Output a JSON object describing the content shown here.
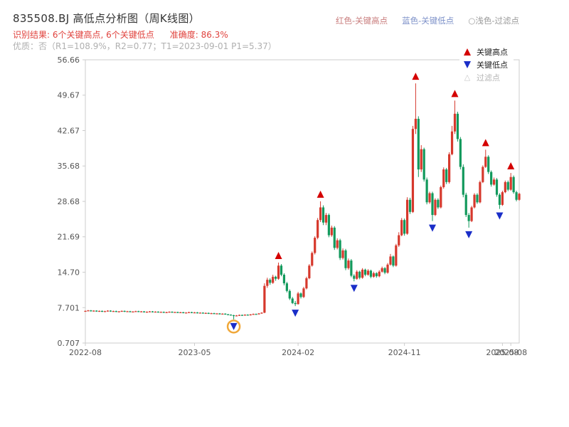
{
  "header": {
    "title": "835508.BJ 高低点分析图（周K线图）",
    "legend_top": [
      {
        "label": "红色-关键高点",
        "color": "#c87c7c"
      },
      {
        "label": "蓝色-关键低点",
        "color": "#7c90c8"
      },
      {
        "label": "○浅色-过滤点",
        "color": "#9a9a9a"
      }
    ],
    "result_line": "识别结果: 6个关键高点, 6个关键低点",
    "accuracy_line": "准确度: 86.3%",
    "result_color": "#e0433e",
    "quality_line": "优质：否（R1=108.9%，R2=0.77；T1=2023-09-01 P1=5.37）",
    "quality_color": "#b0b0b0"
  },
  "chart_data": {
    "type": "candlestick",
    "title": "835508.BJ 高低点分析图（周K线图）",
    "xlabel": "",
    "ylabel": "",
    "grid": false,
    "ylim": [
      0.707,
      56.66
    ],
    "y_ticks": [
      0.707,
      7.701,
      14.7,
      21.69,
      28.68,
      35.68,
      42.67,
      49.67,
      56.66
    ],
    "y_tick_labels": [
      "0.707",
      "7.701",
      "14.70",
      "21.69",
      "28.68",
      "35.68",
      "42.67",
      "49.67",
      "56.66"
    ],
    "x_ticks": [
      {
        "i": 0,
        "label": "2022-08"
      },
      {
        "i": 39,
        "label": "2023-05"
      },
      {
        "i": 76,
        "label": "2024-02"
      },
      {
        "i": 114,
        "label": "2024-11"
      },
      {
        "i": 149,
        "label": "2025-08"
      },
      {
        "i": 152,
        "label": "2025-08"
      }
    ],
    "colors": {
      "up": "#d6382c",
      "down": "#12995c",
      "key_high": "#d40000",
      "key_low": "#1a2ec8",
      "filtered_text": "#b5b5b5",
      "filtered_circle": "#f0a83a",
      "axis": "#cccccc",
      "tick_text": "#555555"
    },
    "plot_legend": [
      {
        "label": "关键高点",
        "marker": "up"
      },
      {
        "label": "关键低点",
        "marker": "down"
      },
      {
        "label": "过滤点",
        "marker": "outline"
      }
    ],
    "key_highs": [
      {
        "i": 69,
        "price": 16.6
      },
      {
        "i": 84,
        "price": 28.7
      },
      {
        "i": 118,
        "price": 52.0
      },
      {
        "i": 132,
        "price": 48.6
      },
      {
        "i": 143,
        "price": 38.9
      },
      {
        "i": 152,
        "price": 34.3
      }
    ],
    "key_lows": [
      {
        "i": 53,
        "price": 5.37,
        "circled": true
      },
      {
        "i": 75,
        "price": 8.0
      },
      {
        "i": 96,
        "price": 12.9
      },
      {
        "i": 124,
        "price": 24.8
      },
      {
        "i": 137,
        "price": 23.5
      },
      {
        "i": 148,
        "price": 27.2
      }
    ],
    "candles": [
      [
        7.0,
        7.13,
        6.92,
        7.05
      ],
      [
        7.05,
        7.23,
        6.97,
        7.15
      ],
      [
        7.15,
        7.23,
        6.92,
        7.0
      ],
      [
        7.0,
        7.18,
        6.92,
        7.1
      ],
      [
        7.1,
        7.18,
        6.87,
        6.95
      ],
      [
        6.95,
        7.13,
        6.87,
        7.05
      ],
      [
        7.05,
        7.13,
        6.82,
        6.9
      ],
      [
        6.9,
        7.08,
        6.82,
        7.0
      ],
      [
        7.0,
        7.18,
        6.92,
        7.1
      ],
      [
        7.1,
        7.18,
        6.87,
        6.95
      ],
      [
        6.95,
        7.1,
        6.87,
        7.02
      ],
      [
        7.02,
        7.1,
        6.8,
        6.88
      ],
      [
        6.88,
        7.03,
        6.8,
        6.95
      ],
      [
        6.95,
        7.13,
        6.87,
        7.05
      ],
      [
        7.05,
        7.13,
        6.82,
        6.9
      ],
      [
        6.9,
        7.06,
        6.82,
        6.98
      ],
      [
        6.98,
        7.06,
        6.77,
        6.85
      ],
      [
        6.85,
        7.0,
        6.77,
        6.92
      ],
      [
        6.92,
        7.08,
        6.84,
        7.0
      ],
      [
        7.0,
        7.08,
        6.8,
        6.88
      ],
      [
        6.88,
        7.03,
        6.8,
        6.95
      ],
      [
        6.95,
        7.03,
        6.72,
        6.8
      ],
      [
        6.8,
        6.96,
        6.72,
        6.88
      ],
      [
        6.88,
        7.03,
        6.8,
        6.95
      ],
      [
        6.95,
        7.03,
        6.74,
        6.82
      ],
      [
        6.82,
        6.98,
        6.74,
        6.9
      ],
      [
        6.9,
        6.98,
        6.7,
        6.78
      ],
      [
        6.78,
        6.93,
        6.7,
        6.85
      ],
      [
        6.85,
        6.93,
        6.64,
        6.72
      ],
      [
        6.72,
        6.88,
        6.64,
        6.8
      ],
      [
        6.8,
        6.96,
        6.72,
        6.88
      ],
      [
        6.88,
        6.96,
        6.67,
        6.75
      ],
      [
        6.75,
        6.9,
        6.67,
        6.82
      ],
      [
        6.82,
        6.9,
        6.62,
        6.7
      ],
      [
        6.7,
        6.86,
        6.62,
        6.78
      ],
      [
        6.78,
        6.86,
        6.57,
        6.65
      ],
      [
        6.65,
        6.8,
        6.57,
        6.72
      ],
      [
        6.72,
        6.88,
        6.64,
        6.8
      ],
      [
        6.8,
        6.88,
        6.6,
        6.68
      ],
      [
        6.68,
        6.83,
        6.6,
        6.75
      ],
      [
        6.75,
        6.83,
        6.54,
        6.62
      ],
      [
        6.62,
        6.78,
        6.54,
        6.7
      ],
      [
        6.7,
        6.78,
        6.5,
        6.58
      ],
      [
        6.58,
        6.73,
        6.5,
        6.65
      ],
      [
        6.65,
        6.73,
        6.44,
        6.52
      ],
      [
        6.52,
        6.68,
        6.44,
        6.6
      ],
      [
        6.6,
        6.68,
        6.4,
        6.48
      ],
      [
        6.48,
        6.63,
        6.4,
        6.55
      ],
      [
        6.55,
        6.63,
        6.34,
        6.42
      ],
      [
        6.42,
        6.58,
        6.34,
        6.5
      ],
      [
        6.5,
        6.58,
        6.3,
        6.38
      ],
      [
        6.38,
        6.46,
        6.22,
        6.3
      ],
      [
        6.3,
        6.38,
        6.12,
        6.2
      ],
      [
        6.2,
        6.28,
        5.37,
        6.05
      ],
      [
        6.05,
        6.23,
        5.98,
        6.15
      ],
      [
        6.15,
        6.33,
        6.08,
        6.25
      ],
      [
        6.25,
        6.33,
        6.1,
        6.18
      ],
      [
        6.18,
        6.38,
        6.1,
        6.3
      ],
      [
        6.3,
        6.38,
        6.14,
        6.22
      ],
      [
        6.22,
        6.43,
        6.15,
        6.35
      ],
      [
        6.35,
        6.53,
        6.28,
        6.45
      ],
      [
        6.45,
        6.53,
        6.32,
        6.4
      ],
      [
        6.4,
        6.63,
        6.33,
        6.55
      ],
      [
        6.55,
        6.78,
        6.48,
        6.7
      ],
      [
        6.7,
        12.5,
        6.6,
        12.0
      ],
      [
        12.0,
        13.6,
        11.6,
        13.2
      ],
      [
        13.2,
        13.5,
        12.2,
        12.6
      ],
      [
        12.6,
        14.2,
        12.4,
        13.8
      ],
      [
        13.8,
        14.0,
        13.0,
        13.4
      ],
      [
        13.4,
        16.6,
        13.2,
        16.0
      ],
      [
        16.0,
        16.3,
        13.9,
        14.2
      ],
      [
        14.2,
        14.5,
        12.1,
        12.5
      ],
      [
        12.5,
        12.8,
        10.7,
        11.0
      ],
      [
        11.0,
        11.3,
        9.2,
        9.5
      ],
      [
        9.5,
        9.8,
        8.4,
        8.6
      ],
      [
        8.6,
        9.0,
        8.0,
        8.4
      ],
      [
        8.4,
        10.8,
        8.3,
        10.5
      ],
      [
        10.5,
        10.7,
        9.5,
        9.8
      ],
      [
        9.8,
        11.8,
        9.6,
        11.5
      ],
      [
        11.5,
        13.8,
        11.3,
        13.5
      ],
      [
        13.5,
        16.3,
        13.3,
        16.0
      ],
      [
        16.0,
        18.8,
        15.8,
        18.5
      ],
      [
        18.5,
        21.8,
        18.2,
        21.5
      ],
      [
        21.5,
        25.4,
        21.2,
        25.0
      ],
      [
        25.0,
        28.7,
        24.6,
        27.5
      ],
      [
        27.5,
        27.9,
        24.0,
        24.5
      ],
      [
        24.5,
        26.4,
        24.0,
        26.0
      ],
      [
        26.0,
        26.3,
        21.6,
        22.0
      ],
      [
        22.0,
        23.9,
        21.7,
        23.5
      ],
      [
        23.5,
        23.8,
        19.1,
        19.5
      ],
      [
        19.5,
        21.4,
        19.2,
        21.0
      ],
      [
        21.0,
        21.3,
        17.1,
        17.5
      ],
      [
        17.5,
        19.4,
        17.2,
        19.0
      ],
      [
        19.0,
        19.3,
        15.1,
        15.5
      ],
      [
        15.5,
        17.4,
        15.2,
        17.0
      ],
      [
        17.0,
        17.3,
        13.7,
        14.0
      ],
      [
        14.0,
        14.3,
        12.9,
        13.4
      ],
      [
        13.4,
        15.1,
        13.2,
        14.8
      ],
      [
        14.8,
        15.0,
        13.3,
        13.6
      ],
      [
        13.6,
        15.5,
        13.4,
        15.2
      ],
      [
        15.2,
        15.4,
        13.9,
        14.2
      ],
      [
        14.2,
        15.3,
        14.0,
        15.0
      ],
      [
        15.0,
        15.2,
        13.5,
        13.8
      ],
      [
        13.8,
        14.8,
        13.6,
        14.5
      ],
      [
        14.5,
        14.7,
        13.6,
        13.9
      ],
      [
        13.9,
        15.1,
        13.7,
        14.8
      ],
      [
        14.8,
        15.8,
        14.6,
        15.5
      ],
      [
        15.5,
        15.7,
        14.3,
        14.6
      ],
      [
        14.6,
        16.5,
        14.4,
        16.2
      ],
      [
        16.2,
        18.3,
        16.0,
        17.8
      ],
      [
        17.8,
        18.0,
        15.7,
        16.0
      ],
      [
        16.0,
        20.3,
        15.8,
        20.0
      ],
      [
        20.0,
        22.6,
        19.7,
        22.0
      ],
      [
        22.0,
        25.4,
        21.8,
        25.0
      ],
      [
        25.0,
        25.3,
        21.9,
        22.3
      ],
      [
        22.3,
        29.5,
        22.1,
        29.0
      ],
      [
        29.0,
        29.4,
        26.2,
        26.6
      ],
      [
        26.6,
        43.6,
        26.4,
        43.0
      ],
      [
        43.0,
        52.0,
        42.0,
        45.0
      ],
      [
        45.0,
        45.5,
        33.5,
        35.0
      ],
      [
        35.0,
        39.8,
        34.5,
        39.0
      ],
      [
        39.0,
        39.3,
        32.6,
        33.0
      ],
      [
        33.0,
        33.4,
        28.1,
        28.5
      ],
      [
        28.5,
        30.6,
        28.2,
        30.3
      ],
      [
        30.3,
        30.6,
        24.8,
        26.0
      ],
      [
        26.0,
        29.3,
        25.8,
        29.0
      ],
      [
        29.0,
        29.3,
        27.2,
        27.5
      ],
      [
        27.5,
        31.8,
        27.3,
        31.5
      ],
      [
        31.5,
        35.4,
        31.2,
        35.0
      ],
      [
        35.0,
        35.3,
        32.1,
        32.5
      ],
      [
        32.5,
        38.4,
        32.2,
        38.0
      ],
      [
        38.0,
        43.6,
        37.8,
        42.5
      ],
      [
        42.5,
        48.6,
        42.0,
        46.0
      ],
      [
        46.0,
        46.4,
        40.5,
        41.0
      ],
      [
        41.0,
        41.4,
        35.0,
        35.5
      ],
      [
        35.5,
        36.0,
        29.5,
        30.0
      ],
      [
        30.0,
        30.4,
        25.6,
        26.0
      ],
      [
        26.0,
        26.4,
        23.5,
        24.8
      ],
      [
        24.8,
        27.8,
        24.6,
        27.5
      ],
      [
        27.5,
        30.3,
        27.3,
        30.0
      ],
      [
        30.0,
        30.3,
        28.2,
        28.5
      ],
      [
        28.5,
        32.8,
        28.3,
        32.5
      ],
      [
        32.5,
        35.8,
        32.3,
        35.5
      ],
      [
        35.5,
        38.9,
        35.3,
        37.5
      ],
      [
        37.5,
        37.8,
        34.1,
        34.5
      ],
      [
        34.5,
        34.8,
        31.6,
        32.0
      ],
      [
        32.0,
        33.4,
        31.8,
        33.0
      ],
      [
        33.0,
        33.3,
        29.6,
        30.0
      ],
      [
        30.0,
        30.3,
        27.2,
        28.0
      ],
      [
        28.0,
        30.8,
        27.8,
        30.5
      ],
      [
        30.5,
        32.8,
        30.3,
        32.5
      ],
      [
        32.5,
        32.8,
        30.7,
        31.0
      ],
      [
        31.0,
        34.3,
        30.8,
        33.5
      ],
      [
        33.5,
        33.8,
        30.2,
        30.5
      ],
      [
        30.5,
        30.8,
        28.7,
        29.0
      ],
      [
        29.0,
        30.4,
        28.8,
        30.2
      ]
    ]
  }
}
